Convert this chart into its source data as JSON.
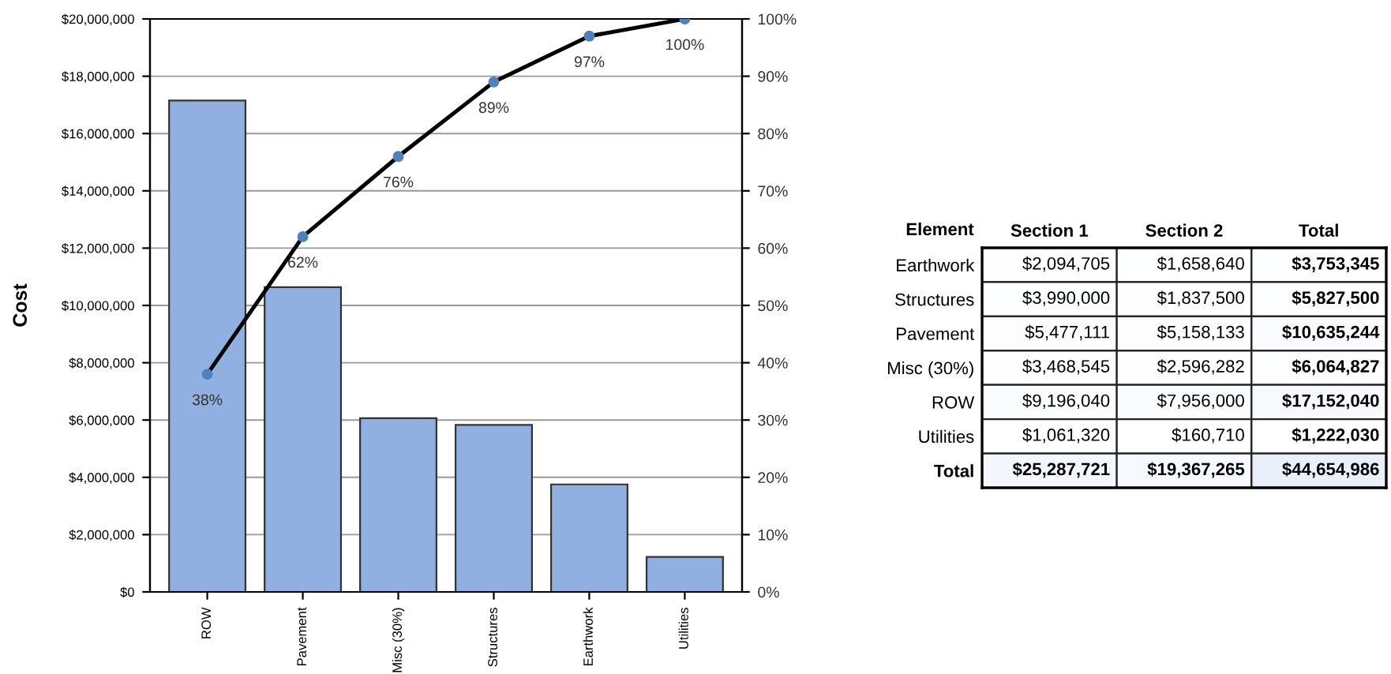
{
  "chart_data": [
    {
      "type": "bar",
      "ylabel": "Cost",
      "categories": [
        "ROW",
        "Pavement",
        "Misc (30%)",
        "Structures",
        "Earthwork",
        "Utilities"
      ],
      "series": [
        {
          "type": "bar",
          "color": "#8fb0e0",
          "values": [
            17152040,
            10635244,
            6064827,
            5827500,
            3753345,
            1222030
          ]
        },
        {
          "type": "line",
          "axis": "y2",
          "color": "#000000",
          "marker": "circle",
          "values": [
            38,
            62,
            76,
            89,
            97,
            100
          ],
          "value_labels": [
            "38%",
            "62%",
            "76%",
            "89%",
            "97%",
            "100%"
          ]
        }
      ],
      "ylim": [
        0,
        20000000
      ],
      "yticks": [
        {
          "value": 0,
          "label": "$0"
        },
        {
          "value": 2000000,
          "label": "$2,000,000"
        },
        {
          "value": 4000000,
          "label": "$4,000,000"
        },
        {
          "value": 6000000,
          "label": "$6,000,000"
        },
        {
          "value": 8000000,
          "label": "$8,000,000"
        },
        {
          "value": 10000000,
          "label": "$10,000,000"
        },
        {
          "value": 12000000,
          "label": "$12,000,000"
        },
        {
          "value": 14000000,
          "label": "$14,000,000"
        },
        {
          "value": 16000000,
          "label": "$16,000,000"
        },
        {
          "value": 18000000,
          "label": "$18,000,000"
        },
        {
          "value": 20000000,
          "label": "$20,000,000"
        }
      ],
      "y2lim": [
        0,
        100
      ],
      "y2ticks": [
        {
          "value": 0,
          "label": "0%"
        },
        {
          "value": 10,
          "label": "10%"
        },
        {
          "value": 20,
          "label": "20%"
        },
        {
          "value": 30,
          "label": "30%"
        },
        {
          "value": 40,
          "label": "40%"
        },
        {
          "value": 50,
          "label": "50%"
        },
        {
          "value": 60,
          "label": "60%"
        },
        {
          "value": 70,
          "label": "70%"
        },
        {
          "value": 80,
          "label": "80%"
        },
        {
          "value": 90,
          "label": "90%"
        },
        {
          "value": 100,
          "label": "100%"
        }
      ],
      "grid": "y",
      "legend": false
    },
    {
      "type": "heatmap",
      "ylabel": "Element",
      "categories": [
        "Section 1",
        "Section 2",
        "Total"
      ],
      "y_categories": [
        "Earthwork",
        "Structures",
        "Pavement",
        "Misc (30%)",
        "ROW",
        "Utilities",
        "Total"
      ],
      "cells": [
        [
          2094705,
          1658640,
          3753345
        ],
        [
          3990000,
          1837500,
          5827500
        ],
        [
          5477111,
          5158133,
          10635244
        ],
        [
          3468545,
          2596282,
          6064827
        ],
        [
          9196040,
          7956000,
          17152040
        ],
        [
          1061320,
          160710,
          1222030
        ],
        [
          25287721,
          19367265,
          44654986
        ]
      ],
      "cell_labels": [
        [
          "$2,094,705",
          "$1,658,640",
          "$3,753,345"
        ],
        [
          "$3,990,000",
          "$1,837,500",
          "$5,827,500"
        ],
        [
          "$5,477,111",
          "$5,158,133",
          "$10,635,244"
        ],
        [
          "$3,468,545",
          "$2,596,282",
          "$6,064,827"
        ],
        [
          "$9,196,040",
          "$7,956,000",
          "$17,152,040"
        ],
        [
          "$1,061,320",
          "$160,710",
          "$1,222,030"
        ],
        [
          "$25,287,721",
          "$19,367,265",
          "$44,654,986"
        ]
      ]
    }
  ]
}
